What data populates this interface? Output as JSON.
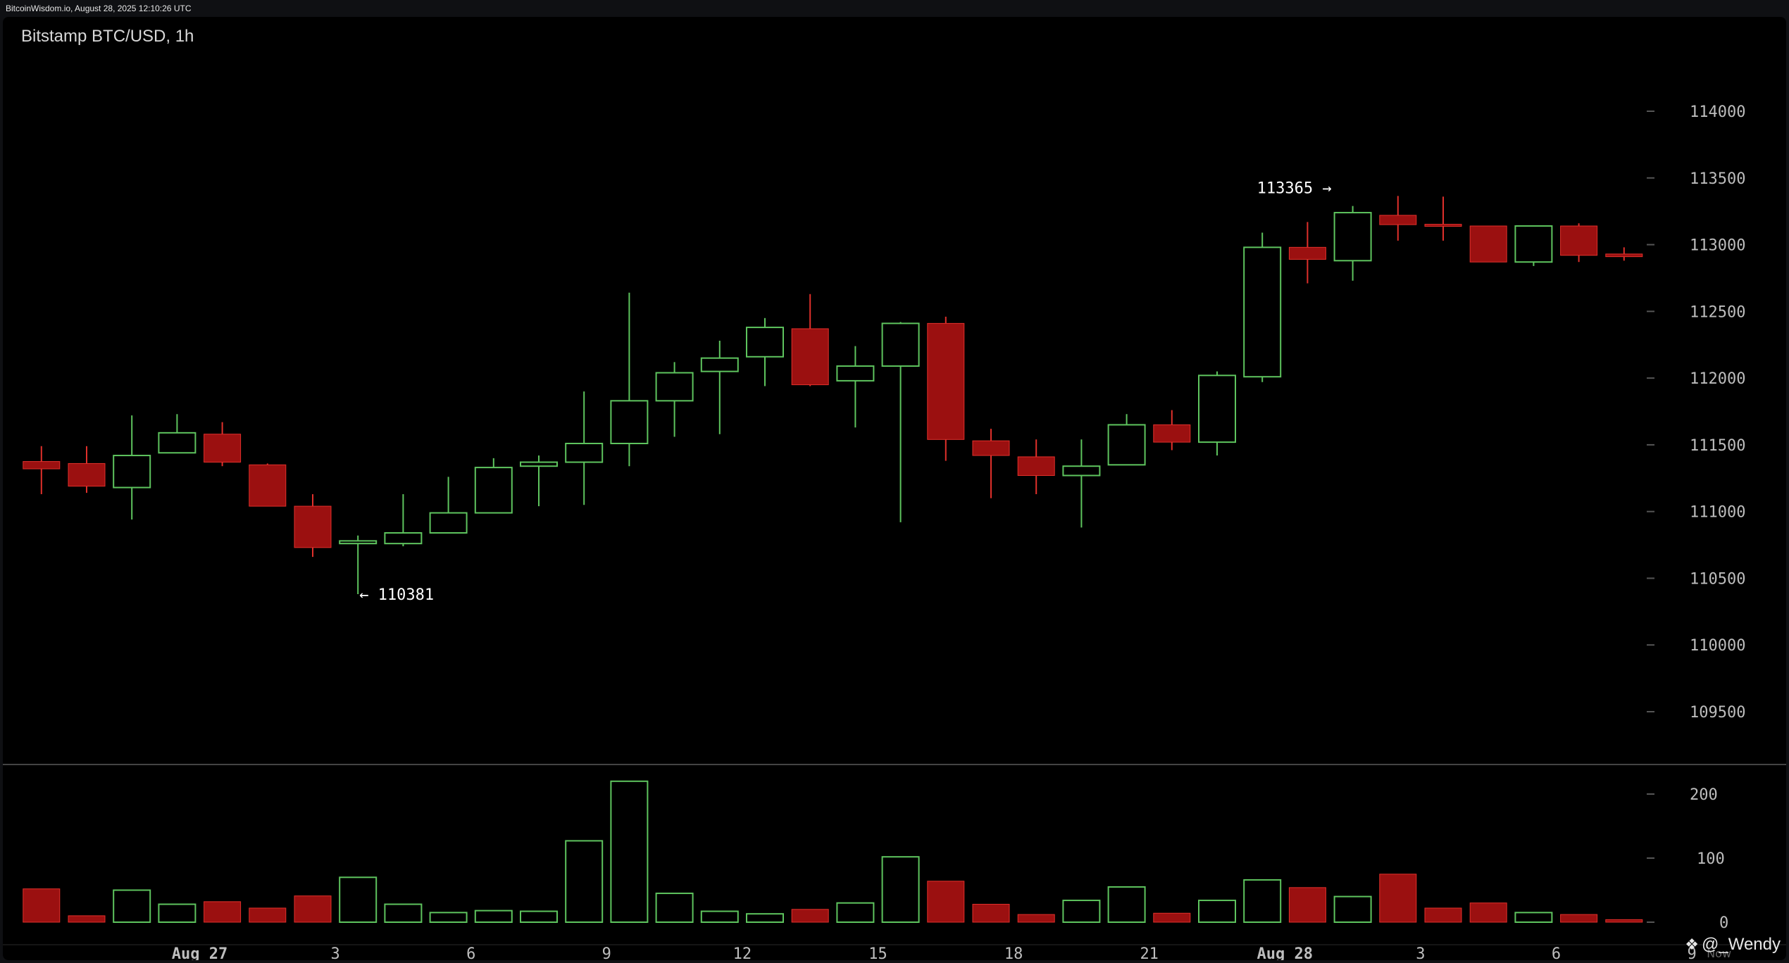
{
  "header": {
    "source_text": "BitcoinWisdom.io, August 28, 2025 12:10:26 UTC"
  },
  "watermark": {
    "icon": "diamond-logo-icon",
    "text": "@_Wendy"
  },
  "colors": {
    "up": "#5ec45e",
    "down": "#9b1010",
    "down_wick": "#e0302b",
    "grid_tick": "#555555",
    "divider": "#444444",
    "background": "#000000"
  },
  "chart_data": {
    "type": "candlestick",
    "title": "Bitstamp BTC/USD, 1h",
    "price_axis": {
      "ticks": [
        109500,
        110000,
        110500,
        111000,
        111500,
        112000,
        112500,
        113000,
        113500,
        114000
      ],
      "tick_labels": [
        "109500",
        "110000",
        "110500",
        "111000",
        "111500",
        "112000",
        "112500",
        "113000",
        "113500",
        "114000"
      ],
      "range": [
        109100,
        114500
      ]
    },
    "volume_axis": {
      "ticks": [
        0,
        100,
        200
      ],
      "tick_labels": [
        "0",
        "100",
        "200"
      ],
      "range": [
        0,
        230
      ]
    },
    "x_axis": {
      "ticks": [
        {
          "candle": 3.5,
          "label": "Aug 27",
          "bold": true
        },
        {
          "candle": 6.5,
          "label": "3",
          "bold": false
        },
        {
          "candle": 9.5,
          "label": "6",
          "bold": false
        },
        {
          "candle": 12.5,
          "label": "9",
          "bold": false
        },
        {
          "candle": 15.5,
          "label": "12",
          "bold": false
        },
        {
          "candle": 18.5,
          "label": "15",
          "bold": false
        },
        {
          "candle": 21.5,
          "label": "18",
          "bold": false
        },
        {
          "candle": 24.5,
          "label": "21",
          "bold": false
        },
        {
          "candle": 27.5,
          "label": "Aug 28",
          "bold": true
        },
        {
          "candle": 30.5,
          "label": "3",
          "bold": false
        },
        {
          "candle": 33.5,
          "label": "6",
          "bold": false
        },
        {
          "candle": 36.5,
          "label": "9",
          "bold": false
        }
      ],
      "extra_label": "Now"
    },
    "candles": [
      {
        "o": 111375,
        "h": 111490,
        "l": 111130,
        "c": 111320,
        "v": 52
      },
      {
        "o": 111360,
        "h": 111490,
        "l": 111140,
        "c": 111190,
        "v": 10
      },
      {
        "o": 111180,
        "h": 111720,
        "l": 110940,
        "c": 111420,
        "v": 50
      },
      {
        "o": 111440,
        "h": 111730,
        "l": 111440,
        "c": 111590,
        "v": 28
      },
      {
        "o": 111580,
        "h": 111670,
        "l": 111340,
        "c": 111370,
        "v": 32
      },
      {
        "o": 111350,
        "h": 111360,
        "l": 111040,
        "c": 111040,
        "v": 22
      },
      {
        "o": 111040,
        "h": 111130,
        "l": 110660,
        "c": 110730,
        "v": 41
      },
      {
        "o": 110760,
        "h": 110820,
        "l": 110381,
        "c": 110780,
        "v": 70
      },
      {
        "o": 110760,
        "h": 111130,
        "l": 110740,
        "c": 110840,
        "v": 28
      },
      {
        "o": 110840,
        "h": 111260,
        "l": 110840,
        "c": 110990,
        "v": 15
      },
      {
        "o": 110990,
        "h": 111400,
        "l": 110990,
        "c": 111330,
        "v": 18
      },
      {
        "o": 111340,
        "h": 111420,
        "l": 111040,
        "c": 111370,
        "v": 17
      },
      {
        "o": 111370,
        "h": 111900,
        "l": 111050,
        "c": 111510,
        "v": 127
      },
      {
        "o": 111510,
        "h": 112640,
        "l": 111340,
        "c": 111830,
        "v": 220
      },
      {
        "o": 111830,
        "h": 112120,
        "l": 111560,
        "c": 112040,
        "v": 45
      },
      {
        "o": 112050,
        "h": 112280,
        "l": 111580,
        "c": 112150,
        "v": 17
      },
      {
        "o": 112160,
        "h": 112450,
        "l": 111940,
        "c": 112380,
        "v": 13
      },
      {
        "o": 112370,
        "h": 112630,
        "l": 111940,
        "c": 111950,
        "v": 20
      },
      {
        "o": 111980,
        "h": 112240,
        "l": 111630,
        "c": 112090,
        "v": 30
      },
      {
        "o": 112090,
        "h": 112420,
        "l": 110920,
        "c": 112410,
        "v": 102
      },
      {
        "o": 112410,
        "h": 112460,
        "l": 111380,
        "c": 111540,
        "v": 64
      },
      {
        "o": 111530,
        "h": 111620,
        "l": 111100,
        "c": 111420,
        "v": 28
      },
      {
        "o": 111410,
        "h": 111540,
        "l": 111130,
        "c": 111270,
        "v": 12
      },
      {
        "o": 111270,
        "h": 111540,
        "l": 110880,
        "c": 111340,
        "v": 34
      },
      {
        "o": 111350,
        "h": 111730,
        "l": 111350,
        "c": 111650,
        "v": 55
      },
      {
        "o": 111650,
        "h": 111760,
        "l": 111460,
        "c": 111520,
        "v": 14
      },
      {
        "o": 111520,
        "h": 112050,
        "l": 111420,
        "c": 112020,
        "v": 34
      },
      {
        "o": 112010,
        "h": 113090,
        "l": 111970,
        "c": 112980,
        "v": 66
      },
      {
        "o": 112980,
        "h": 113170,
        "l": 112710,
        "c": 112890,
        "v": 54
      },
      {
        "o": 112880,
        "h": 113290,
        "l": 112730,
        "c": 113240,
        "v": 40
      },
      {
        "o": 113220,
        "h": 113365,
        "l": 113030,
        "c": 113150,
        "v": 75
      },
      {
        "o": 113150,
        "h": 113360,
        "l": 113030,
        "c": 113140,
        "v": 22
      },
      {
        "o": 113140,
        "h": 113140,
        "l": 112870,
        "c": 112870,
        "v": 30
      },
      {
        "o": 112870,
        "h": 113140,
        "l": 112840,
        "c": 113140,
        "v": 15
      },
      {
        "o": 113140,
        "h": 113160,
        "l": 112870,
        "c": 112920,
        "v": 12
      },
      {
        "o": 112930,
        "h": 112980,
        "l": 112880,
        "c": 112910,
        "v": 4
      }
    ],
    "annotations": [
      {
        "type": "high",
        "candle": 29,
        "value": 113365,
        "label": "113365 →"
      },
      {
        "type": "low",
        "candle": 7,
        "value": 110381,
        "label": "← 110381"
      }
    ]
  }
}
